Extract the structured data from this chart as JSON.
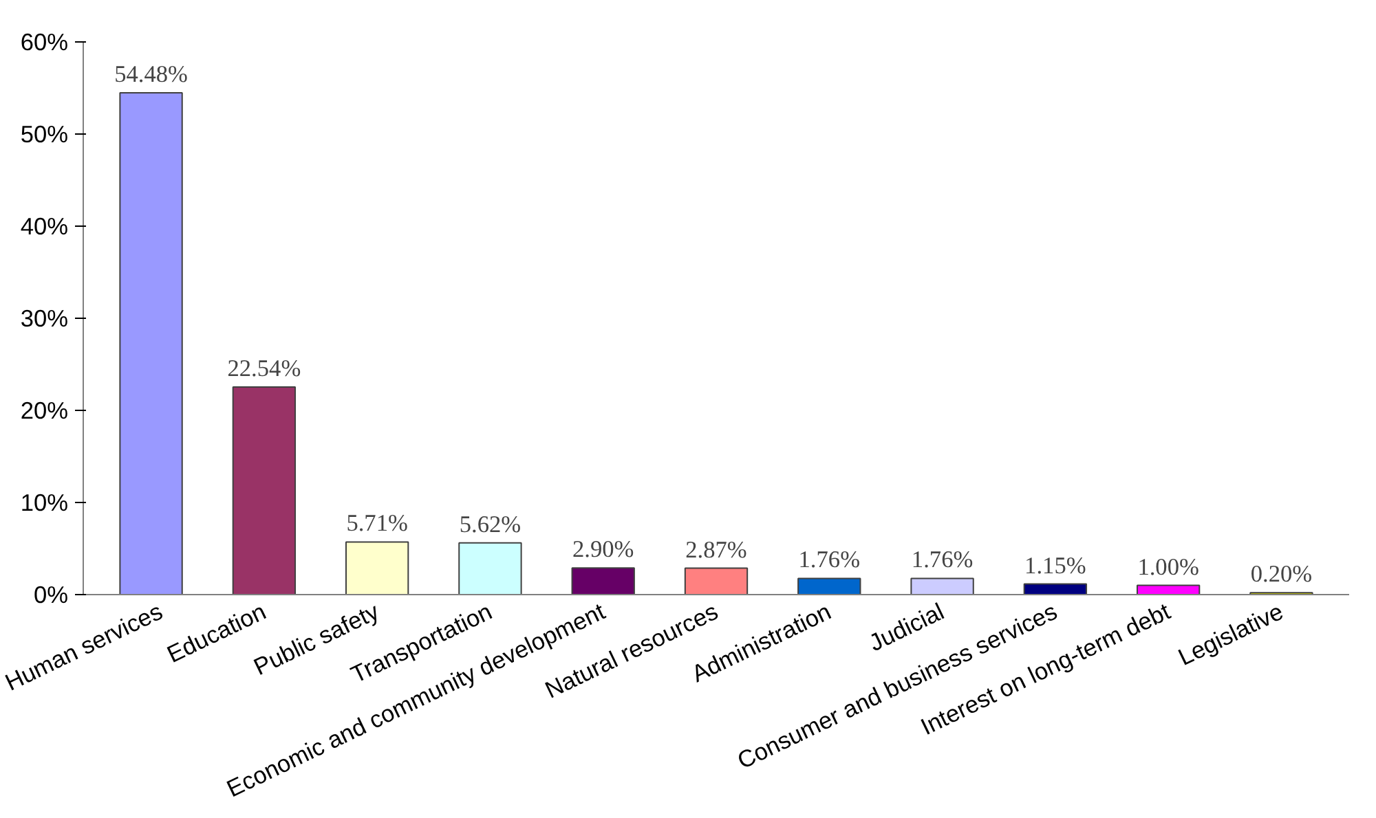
{
  "chart_data": {
    "type": "bar",
    "categories": [
      "Human services",
      "Education",
      "Public safety",
      "Transportation",
      "Economic and community development",
      "Natural resources",
      "Administration",
      "Judicial",
      "Consumer and business services",
      "Interest on long-term debt",
      "Legislative"
    ],
    "values": [
      54.48,
      22.54,
      5.71,
      5.62,
      2.9,
      2.87,
      1.76,
      1.76,
      1.15,
      1.0,
      0.2
    ],
    "value_labels": [
      "54.48%",
      "22.54%",
      "5.71%",
      "5.62%",
      "2.90%",
      "2.87%",
      "1.76%",
      "1.76%",
      "1.15%",
      "1.00%",
      "0.20%"
    ],
    "colors": [
      "#9999ff",
      "#993366",
      "#ffffcc",
      "#ccffff",
      "#660066",
      "#ff8080",
      "#0066cc",
      "#ccccff",
      "#000080",
      "#ff00ff",
      "#cccc00"
    ],
    "ylim": [
      0,
      60
    ],
    "yticks": [
      {
        "value": 0,
        "label": "0%"
      },
      {
        "value": 10,
        "label": "10%"
      },
      {
        "value": 20,
        "label": "20%"
      },
      {
        "value": 30,
        "label": "30%"
      },
      {
        "value": 40,
        "label": "40%"
      },
      {
        "value": 50,
        "label": "50%"
      },
      {
        "value": 60,
        "label": "60%"
      }
    ],
    "grid": false
  }
}
